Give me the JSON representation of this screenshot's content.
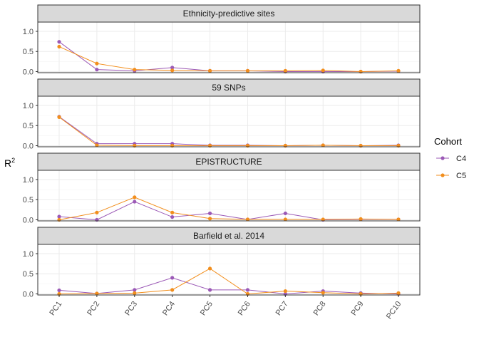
{
  "chart_data": {
    "type": "line",
    "ylabel": "R",
    "ylabel_sup": "2",
    "categories": [
      "PC1",
      "PC2",
      "PC3",
      "PC4",
      "PC5",
      "PC6",
      "PC7",
      "PC8",
      "PC9",
      "PC10"
    ],
    "ylim": [
      0,
      1.2
    ],
    "yticks": [
      "0.0",
      "0.5",
      "1.0"
    ],
    "grid": true,
    "legend": {
      "title": "Cohort",
      "placement": "right",
      "entries": [
        {
          "name": "C4",
          "color": "#9b59b6"
        },
        {
          "name": "C5",
          "color": "#f28e1c"
        }
      ]
    },
    "panels": [
      {
        "title": "Ethnicity-predictive sites",
        "series": [
          {
            "name": "C4",
            "values": [
              0.74,
              0.05,
              0.02,
              0.1,
              0.02,
              0.02,
              0.0,
              0.0,
              0.0,
              0.01
            ]
          },
          {
            "name": "C5",
            "values": [
              0.62,
              0.2,
              0.05,
              0.03,
              0.02,
              0.02,
              0.02,
              0.03,
              0.0,
              0.02
            ]
          }
        ]
      },
      {
        "title": "59 SNPs",
        "series": [
          {
            "name": "C4",
            "values": [
              0.72,
              0.05,
              0.05,
              0.05,
              0.01,
              0.01,
              0.0,
              0.01,
              0.0,
              0.01
            ]
          },
          {
            "name": "C5",
            "values": [
              0.71,
              0.01,
              0.0,
              0.0,
              0.0,
              0.0,
              0.0,
              0.01,
              0.0,
              0.0
            ]
          }
        ]
      },
      {
        "title": "EPISTRUCTURE",
        "series": [
          {
            "name": "C4",
            "values": [
              0.08,
              0.0,
              0.45,
              0.07,
              0.16,
              0.01,
              0.16,
              0.0,
              0.01,
              0.01
            ]
          },
          {
            "name": "C5",
            "values": [
              0.0,
              0.18,
              0.56,
              0.18,
              0.03,
              0.01,
              0.01,
              0.01,
              0.02,
              0.01
            ]
          }
        ]
      },
      {
        "title": "Barfield et al. 2014",
        "series": [
          {
            "name": "C4",
            "values": [
              0.09,
              0.01,
              0.1,
              0.4,
              0.1,
              0.1,
              0.0,
              0.07,
              0.02,
              0.0
            ]
          },
          {
            "name": "C5",
            "values": [
              0.0,
              0.01,
              0.02,
              0.1,
              0.63,
              0.0,
              0.07,
              0.03,
              0.0,
              0.02
            ]
          }
        ]
      }
    ]
  }
}
